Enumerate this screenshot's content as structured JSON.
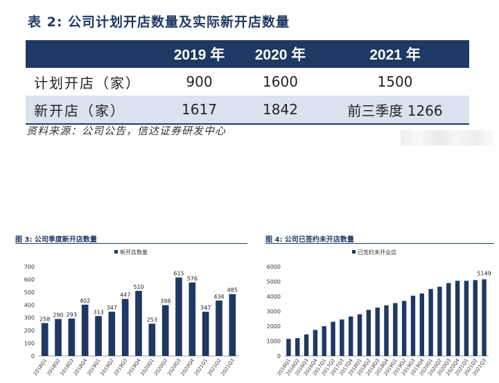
{
  "table": {
    "title": "表 2:  公司计划开店数量及实际新开店数量",
    "header": [
      "",
      "2019 年",
      "2020 年",
      "2021 年"
    ],
    "rows": [
      [
        "计划开店（家）",
        "900",
        "1600",
        "1500"
      ],
      [
        "新开店（家）",
        "1617",
        "1842",
        "前三季度 1266"
      ]
    ],
    "source": "资料来源：公司公告，信达证券研发中心"
  },
  "figure3": {
    "title": "图 3:  公司季度新开店数量"
  },
  "figure4": {
    "title": "图 4:  公司已签约未开店数量"
  },
  "chart_data": [
    {
      "type": "bar",
      "legend": "新开店数量",
      "categories": [
        "2018Q1",
        "2018Q2",
        "2018Q3",
        "2018Q4",
        "2019Q1",
        "2019Q2",
        "2019Q3",
        "2019Q4",
        "2020Q1",
        "2020Q2",
        "2020Q3",
        "2020Q4",
        "2021Q1",
        "2021Q2",
        "2021Q3"
      ],
      "values": [
        258,
        290,
        293,
        402,
        313,
        347,
        447,
        510,
        253,
        398,
        615,
        576,
        347,
        434,
        485
      ],
      "ylim": [
        0,
        700
      ],
      "yticks": [
        0,
        100,
        200,
        300,
        400,
        500,
        600,
        700
      ],
      "data_labels": true,
      "color": "#1f3864"
    },
    {
      "type": "bar",
      "legend": "已签约未开业店",
      "categories": [
        "2016Q1",
        "2016Q2",
        "2016Q3",
        "2016Q4",
        "2017Q1",
        "2017Q2",
        "2017Q3",
        "2017Q4",
        "2018Q1",
        "2018Q2",
        "2018Q3",
        "2018Q4",
        "2019Q1",
        "2019Q2",
        "2019Q3",
        "2019Q4",
        "2020Q1",
        "2020Q2",
        "2020Q3",
        "2020Q4",
        "2021Q1",
        "2021Q2",
        "2021Q3"
      ],
      "values": [
        1150,
        1200,
        1450,
        1750,
        2000,
        2300,
        2450,
        2650,
        2800,
        3100,
        3250,
        3400,
        3550,
        3700,
        4050,
        4200,
        4500,
        4650,
        4900,
        5050,
        5050,
        5100,
        5149
      ],
      "ylim": [
        0,
        6000
      ],
      "yticks": [
        0,
        1000,
        2000,
        3000,
        4000,
        5000,
        6000
      ],
      "last_label": "5149",
      "color": "#1f3864"
    }
  ]
}
